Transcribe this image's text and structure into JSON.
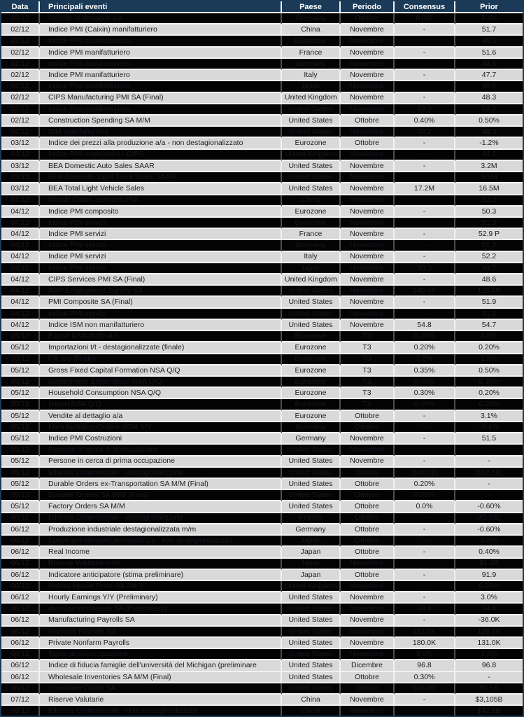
{
  "colors": {
    "header_bg": "#1b3a57",
    "header_text": "#ffffff",
    "row_light_bg": "#d9d9d9",
    "row_light_text": "#212121",
    "row_dark_bg": "#030303",
    "row_dark_text": "#17171f",
    "grid_light": "#f2f2f2",
    "grid_dark": "#4d4d4d"
  },
  "table": {
    "columns": [
      "Data",
      "Principali eventi",
      "Paese",
      "Periodo",
      "Consensus",
      "Prior"
    ],
    "rows": [
      {
        "date": "02/12",
        "event": "Vendite al dettaglio a/a",
        "country": "Germany",
        "period": "Ottobre",
        "consensus": "0.0%",
        "prior": "3.4%",
        "shaded": true
      },
      {
        "date": "02/12",
        "event": "Indice PMI (Caixin) manifatturiero",
        "country": "China",
        "period": "Novembre",
        "consensus": "-",
        "prior": "51.7",
        "shaded": false
      },
      {
        "date": "02/12",
        "event": "Indice PMI manifatturiero",
        "country": "Eurozone",
        "period": "Novembre",
        "consensus": "-",
        "prior": "46.6",
        "shaded": true
      },
      {
        "date": "02/12",
        "event": "Indice PMI manifatturiero",
        "country": "France",
        "period": "Novembre",
        "consensus": "-",
        "prior": "51.6",
        "shaded": false
      },
      {
        "date": "02/12",
        "event": "Indice PMI manifatturiero",
        "country": "Germany",
        "period": "Novembre",
        "consensus": "-",
        "prior": "43.8",
        "shaded": true
      },
      {
        "date": "02/12",
        "event": "Indice PMI manifatturiero",
        "country": "Italy",
        "period": "Novembre",
        "consensus": "-",
        "prior": "47.7",
        "shaded": false
      },
      {
        "date": "02/12",
        "event": "Indice PMI manifatturiero",
        "country": "Japan",
        "period": "Novembre",
        "consensus": "-",
        "prior": "48.6",
        "shaded": true
      },
      {
        "date": "02/12",
        "event": "CIPS Manufacturing PMI SA (Final)",
        "country": "United Kingdom",
        "period": "Novembre",
        "consensus": "-",
        "prior": "48.3",
        "shaded": false
      },
      {
        "date": "02/12",
        "event": "Indice PMI manifatturiero",
        "country": "United States",
        "period": "Novembre",
        "consensus": "52.2",
        "prior": "52.2",
        "shaded": true
      },
      {
        "date": "02/12",
        "event": "Construction Spending SA M/M",
        "country": "United States",
        "period": "Ottobre",
        "consensus": "0.40%",
        "prior": "0.50%",
        "shaded": false
      },
      {
        "date": "02/12",
        "event": "ISM manifatturiero",
        "country": "United States",
        "period": "Novembre",
        "consensus": "49.2",
        "prior": "48.3",
        "shaded": true
      },
      {
        "date": "03/12",
        "event": "Indice dei prezzi alla produzione a/a -  non destagionalizzato",
        "country": "Eurozone",
        "period": "Ottobre",
        "consensus": "-",
        "prior": "-1.2%",
        "shaded": false
      },
      {
        "date": "03/12",
        "event": "Indice PMI costruzioni - CIPS",
        "country": "United Kingdom",
        "period": "Novembre",
        "consensus": "-",
        "prior": "44.2",
        "shaded": true
      },
      {
        "date": "03/12",
        "event": "BEA Domestic Auto Sales SAAR",
        "country": "United States",
        "period": "Novembre",
        "consensus": "-",
        "prior": "3.2M",
        "shaded": false
      },
      {
        "date": "03/12",
        "event": "BEA Domestic Light Truck Sales SAAR",
        "country": "United States",
        "period": "Novembre",
        "consensus": "-",
        "prior": "9.5M",
        "shaded": true
      },
      {
        "date": "03/12",
        "event": "BEA Total Light Vehicle Sales",
        "country": "United States",
        "period": "Novembre",
        "consensus": "17.2M",
        "prior": "16.5M",
        "shaded": false
      },
      {
        "date": "04/12",
        "event": "Markit/ Caixin Services PMI",
        "country": "China",
        "period": "Novembre",
        "consensus": "-",
        "prior": "51.1",
        "shaded": true
      },
      {
        "date": "04/12",
        "event": "Indice PMI composito",
        "country": "Eurozone",
        "period": "Novembre",
        "consensus": "-",
        "prior": "50.3",
        "shaded": false
      },
      {
        "date": "04/12",
        "event": "Indice PMI servizi",
        "country": "Eurozone",
        "period": "Novembre",
        "consensus": "-",
        "prior": "51.5",
        "shaded": true
      },
      {
        "date": "04/12",
        "event": "Indice PMI servizi",
        "country": "France",
        "period": "Novembre",
        "consensus": "-",
        "prior": "52.9 P",
        "shaded": false
      },
      {
        "date": "04/12",
        "event": "Indice PMI servizi",
        "country": "Germany",
        "period": "Novembre",
        "consensus": "-",
        "prior": "51.3",
        "shaded": true
      },
      {
        "date": "04/12",
        "event": "Indice PMI servizi",
        "country": "Italy",
        "period": "Novembre",
        "consensus": "-",
        "prior": "52.2",
        "shaded": false
      },
      {
        "date": "04/12",
        "event": "Indice PMI servizi",
        "country": "Japan",
        "period": "Novembre",
        "consensus": "50.3",
        "prior": "49.7",
        "shaded": true
      },
      {
        "date": "04/12",
        "event": "CIPS Services PMI SA (Final)",
        "country": "United Kingdom",
        "period": "Novembre",
        "consensus": "-",
        "prior": "48.6",
        "shaded": false
      },
      {
        "date": "04/12",
        "event": "ADP Employment Survey SA",
        "country": "United States",
        "period": "Novembre",
        "consensus": "140.0K",
        "prior": "125.0K",
        "shaded": true
      },
      {
        "date": "04/12",
        "event": "PMI Composite SA (Final)",
        "country": "United States",
        "period": "Novembre",
        "consensus": "-",
        "prior": "51.9",
        "shaded": false
      },
      {
        "date": "04/12",
        "event": "Indice PMI servizi",
        "country": "United States",
        "period": "Novembre",
        "consensus": "-",
        "prior": "51.6",
        "shaded": true
      },
      {
        "date": "04/12",
        "event": "Indice ISM non manifatturiero",
        "country": "United States",
        "period": "Novembre",
        "consensus": "54.8",
        "prior": "54.7",
        "shaded": false
      },
      {
        "date": "05/12",
        "event": "Export NSA t/t (finale)",
        "country": "Eurozone",
        "period": "T3",
        "consensus": "0.40%",
        "prior": "0.0%",
        "shaded": true
      },
      {
        "date": "05/12",
        "event": "Importazioni t/t - destagionalizzate (finale)",
        "country": "Eurozone",
        "period": "T3",
        "consensus": "0.20%",
        "prior": "0.20%",
        "shaded": false
      },
      {
        "date": "05/12",
        "event": "PIL a/a (finale)",
        "country": "Eurozone",
        "period": "T3",
        "consensus": "1.2%",
        "prior": "1.2%",
        "shaded": true
      },
      {
        "date": "05/12",
        "event": "Gross Fixed Capital Formation NSA Q/Q",
        "country": "Eurozone",
        "period": "T3",
        "consensus": "0.35%",
        "prior": "0.50%",
        "shaded": false
      },
      {
        "date": "05/12",
        "event": "Government Expenditure NSA Q/Q",
        "country": "Eurozone",
        "period": "T3",
        "consensus": "0.40%",
        "prior": "0.30%",
        "shaded": true
      },
      {
        "date": "05/12",
        "event": "Household Consumption NSA Q/Q",
        "country": "Eurozone",
        "period": "T3",
        "consensus": "0.30%",
        "prior": "0.20%",
        "shaded": false
      },
      {
        "date": "05/12",
        "event": "Import NSA Q/Q",
        "country": "Eurozone",
        "period": "T3",
        "consensus": "0.40%",
        "prior": "0.20%",
        "shaded": true
      },
      {
        "date": "05/12",
        "event": "Vendite al dettaglio a/a",
        "country": "Eurozone",
        "period": "Ottobre",
        "consensus": "-",
        "prior": "3.1%",
        "shaded": false
      },
      {
        "date": "05/12",
        "event": "Manufacturing Orders WDA Y/Y",
        "country": "Germany",
        "period": "Ottobre",
        "consensus": "-",
        "prior": "-5.4%",
        "shaded": true
      },
      {
        "date": "05/12",
        "event": "Indice PMI  Costruzioni",
        "country": "Germany",
        "period": "Novembre",
        "consensus": "-",
        "prior": "51.5",
        "shaded": false
      },
      {
        "date": "05/12",
        "event": "Persone in cerca di rioccupazione",
        "country": "United States",
        "period": "Novembre",
        "consensus": "-",
        "prior": "-",
        "shaded": true
      },
      {
        "date": "05/12",
        "event": "Persone in cerca di prima occupazione",
        "country": "United States",
        "period": "Novembre",
        "consensus": "-",
        "prior": "-",
        "shaded": false
      },
      {
        "date": "05/12",
        "event": "Bilancia Commerciale - destagionalizzata",
        "country": "United States",
        "period": "Ottobre",
        "consensus": "($48.5B)",
        "prior": "($52.5B)",
        "shaded": true
      },
      {
        "date": "05/12",
        "event": "Durable Orders ex-Transportation SA M/M (Final)",
        "country": "United States",
        "period": "Ottobre",
        "consensus": "0.20%",
        "prior": "-",
        "shaded": false
      },
      {
        "date": "05/12",
        "event": "Durable Orders SA M/M (Final)",
        "country": "United States",
        "period": "Ottobre",
        "consensus": "0.60%",
        "prior": "-",
        "shaded": true
      },
      {
        "date": "05/12",
        "event": "Factory Orders SA M/M",
        "country": "United States",
        "period": "Ottobre",
        "consensus": "0.0%",
        "prior": "-0.60%",
        "shaded": false
      },
      {
        "date": "06/12",
        "event": "Bilancia Commerciale - destagionalizzata",
        "country": "France",
        "period": "Ottobre",
        "consensus": "-",
        "prior": "(€5.5B)",
        "shaded": true
      },
      {
        "date": "06/12",
        "event": "Produzione industriale destagionalizzata m/m",
        "country": "Germany",
        "period": "Ottobre",
        "consensus": "-",
        "prior": "-0.60%",
        "shaded": false
      },
      {
        "date": "06/12",
        "event": "Spese per consumi personali a/a - non destagionalizzata",
        "country": "Japan",
        "period": "Ottobre",
        "consensus": "-",
        "prior": "9.5%",
        "shaded": true
      },
      {
        "date": "06/12",
        "event": "Real Income",
        "country": "Japan",
        "period": "Ottobre",
        "consensus": "-",
        "prior": "0.40%",
        "shaded": false
      },
      {
        "date": "06/12",
        "event": "Riserve Valutarie m/m",
        "country": "Japan",
        "period": "Novembre",
        "consensus": "-",
        "prior": "$1.3B",
        "shaded": true
      },
      {
        "date": "06/12",
        "event": "Indicatore anticipatore (stima preliminare)",
        "country": "Japan",
        "period": "Ottobre",
        "consensus": "-",
        "prior": "91.9",
        "shaded": false
      },
      {
        "date": "06/12",
        "event": "Halifax House Price SA 3M/Y",
        "country": "United Kingdom",
        "period": "Novembre",
        "consensus": "-",
        "prior": "0.90%",
        "shaded": true
      },
      {
        "date": "06/12",
        "event": "Hourly Earnings Y/Y (Preliminary)",
        "country": "United States",
        "period": "Novembre",
        "consensus": "-",
        "prior": "3.0%",
        "shaded": false
      },
      {
        "date": "06/12",
        "event": "Average Workweek SA (Preliminary)",
        "country": "United States",
        "period": "Novembre",
        "consensus": "34.4",
        "prior": "34.4",
        "shaded": true
      },
      {
        "date": "06/12",
        "event": "Manufacturing Payrolls SA",
        "country": "United States",
        "period": "Novembre",
        "consensus": "-",
        "prior": "-36.0K",
        "shaded": false
      },
      {
        "date": "06/12",
        "event": "Nonfarm Payrolls SA",
        "country": "United States",
        "period": "Novembre",
        "consensus": "182.5K",
        "prior": "128.0K",
        "shaded": true
      },
      {
        "date": "06/12",
        "event": "Private Nonfarm Payrolls",
        "country": "United States",
        "period": "Novembre",
        "consensus": "180.0K",
        "prior": "131.0K",
        "shaded": false
      },
      {
        "date": "06/12",
        "event": "Tasso di disoccupazione",
        "country": "United States",
        "period": "Novembre",
        "consensus": "3.6%",
        "prior": "3.6%",
        "shaded": true
      },
      {
        "date": "06/12",
        "event": "Indice di fiducia famiglie dell'università del Michigan (preliminare",
        "country": "United States",
        "period": "Dicembre",
        "consensus": "96.8",
        "prior": "96.8",
        "shaded": false
      },
      {
        "date": "06/12",
        "event": "Wholesale Inventories SA M/M (Final)",
        "country": "United States",
        "period": "Ottobre",
        "consensus": "0.30%",
        "prior": "-",
        "shaded": false
      },
      {
        "date": "06/12",
        "event": "Consumer Credit SA",
        "country": "United States",
        "period": "Ottobre",
        "consensus": "$16.0B",
        "prior": "$9.5B",
        "shaded": true
      },
      {
        "date": "07/12",
        "event": "Riserve Valutarie",
        "country": "China",
        "period": "Novembre",
        "consensus": "-",
        "prior": "$3,105B",
        "shaded": false
      },
      {
        "date": "08/12",
        "event": "Bilancia Commerciale - non destagionalizzata",
        "country": "China",
        "period": "Novembre",
        "consensus": "-",
        "prior": "$42.8B",
        "shaded": true
      }
    ]
  }
}
